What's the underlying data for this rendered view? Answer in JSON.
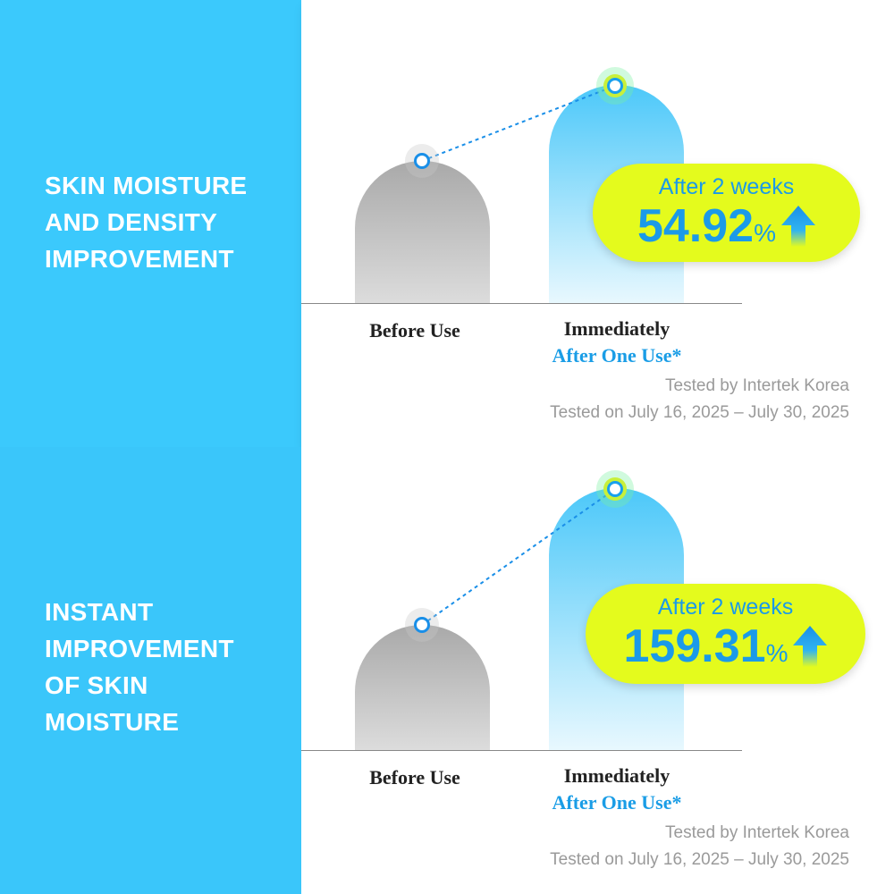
{
  "colors": {
    "side_bg": "#3bc9fc",
    "badge_bg": "#e4fb1d",
    "accent_blue": "#1a9de6",
    "before_bar": "#a9a9a9"
  },
  "panels": [
    {
      "title_lines": [
        "SKIN MOISTURE",
        "AND DENSITY",
        "IMPROVEMENT"
      ],
      "badge": {
        "label": "After 2 weeks",
        "value": "54.92",
        "unit": "%",
        "icon": "arrow-up-icon"
      },
      "categories": [
        "Before Use",
        "Immediately",
        "After One Use*"
      ],
      "notes": [
        "Tested by Intertek Korea",
        "Tested on July 16, 2025 – July 30, 2025"
      ]
    },
    {
      "title_lines": [
        "INSTANT",
        "IMPROVEMENT",
        "OF SKIN",
        "MOISTURE"
      ],
      "badge": {
        "label": "After 2 weeks",
        "value": "159.31",
        "unit": "%",
        "icon": "arrow-up-icon"
      },
      "categories": [
        "Before Use",
        "Immediately",
        "After One Use*"
      ],
      "notes": [
        "Tested by Intertek Korea",
        "Tested on July 16, 2025 – July 30, 2025"
      ]
    }
  ],
  "chart_data": [
    {
      "type": "bar",
      "categories": [
        "Before Use",
        "Immediately After One Use*"
      ],
      "increase_percent": 54.92,
      "annotation": "After 2 weeks 54.92%"
    },
    {
      "type": "bar",
      "categories": [
        "Before Use",
        "Immediately After One Use*"
      ],
      "increase_percent": 159.31,
      "annotation": "After 2 weeks 159.31%"
    }
  ]
}
